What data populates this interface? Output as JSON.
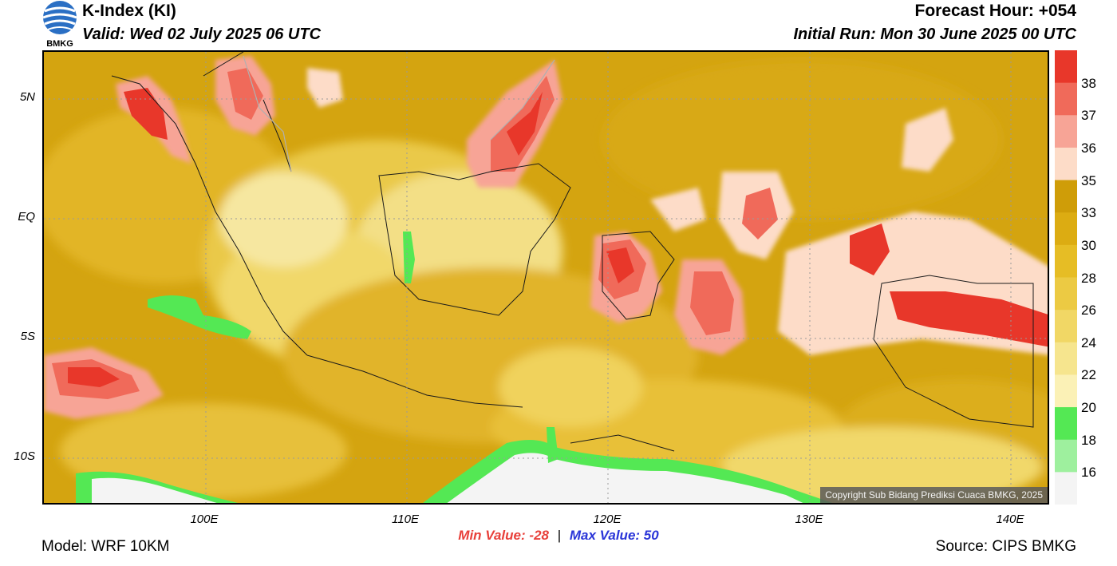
{
  "header": {
    "title": "K-Index (KI)",
    "valid": "Valid: Wed 02 July 2025 06 UTC",
    "forecast_hour": "Forecast Hour: +054",
    "initial_run": "Initial Run: Mon 30 June 2025 00 UTC",
    "logo_text": "BMKG"
  },
  "axes": {
    "lat_labels": [
      "5N",
      "EQ",
      "5S",
      "10S"
    ],
    "lon_labels": [
      "100E",
      "110E",
      "120E",
      "130E",
      "140E"
    ]
  },
  "colorbar": {
    "labels": [
      "38",
      "37",
      "36",
      "35",
      "33",
      "30",
      "28",
      "26",
      "24",
      "22",
      "20",
      "18",
      "16"
    ],
    "colors": [
      "#e8372a",
      "#f06a5a",
      "#f7a496",
      "#fddcc8",
      "#cf9d08",
      "#dcac12",
      "#e6bd25",
      "#ecca43",
      "#f1d765",
      "#f6e58e",
      "#fbf1b6",
      "#54e854",
      "#9ef09e",
      "#f4f4f4"
    ]
  },
  "stats": {
    "min_label": "Min Value:",
    "min_value": "-28",
    "max_label": "Max Value:",
    "max_value": "50"
  },
  "footer": {
    "model": "Model: WRF 10KM",
    "source": "Source: CIPS BMKG",
    "copyright": "Copyright Sub Bidang Prediksi Cuaca BMKG, 2025"
  }
}
